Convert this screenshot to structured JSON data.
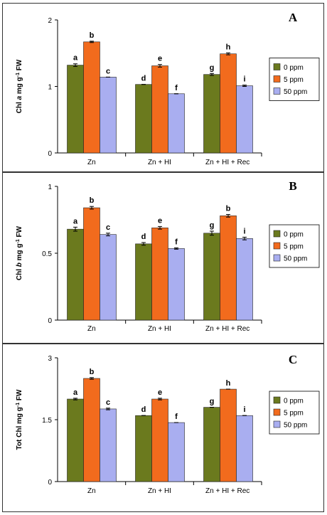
{
  "legend": [
    {
      "label": "0 ppm",
      "color": "#6b7a1e"
    },
    {
      "label": "5 ppm",
      "color": "#f26b1d"
    },
    {
      "label": "50 ppm",
      "color": "#a9aef0"
    }
  ],
  "chart_data": [
    {
      "type": "bar",
      "panel_letter": "A",
      "ylabel_parts": [
        "Chl ",
        "a",
        " mg g",
        "-1",
        " FW"
      ],
      "categories": [
        "Zn",
        "Zn + HI",
        "Zn + HI + Rec"
      ],
      "ylim": [
        0,
        2
      ],
      "ticks": [
        0,
        1,
        2
      ],
      "tick_labels": [
        "0",
        "1",
        "2"
      ],
      "grid": false,
      "legend_position": "right",
      "series": [
        {
          "name": "0 ppm",
          "values": [
            1.32,
            1.03,
            1.18
          ],
          "errors": [
            0.02,
            0.0,
            0.015
          ],
          "letters": [
            "a",
            "d",
            "g"
          ]
        },
        {
          "name": "5 ppm",
          "values": [
            1.67,
            1.31,
            1.49
          ],
          "errors": [
            0.01,
            0.02,
            0.015
          ],
          "letters": [
            "b",
            "e",
            "h"
          ]
        },
        {
          "name": "50 ppm",
          "values": [
            1.14,
            0.89,
            1.01
          ],
          "errors": [
            0.0,
            0.0,
            0.01
          ],
          "letters": [
            "c",
            "f",
            "i"
          ]
        }
      ]
    },
    {
      "type": "bar",
      "panel_letter": "B",
      "ylabel_parts": [
        "Chl ",
        "b",
        " mg g",
        "-1",
        " FW"
      ],
      "categories": [
        "Zn",
        "Zn + HI",
        "Zn + HI + Rec"
      ],
      "ylim": [
        0,
        1
      ],
      "ticks": [
        0,
        0.5,
        1
      ],
      "tick_labels": [
        "0",
        "0.5",
        "1"
      ],
      "grid": false,
      "legend_position": "right",
      "series": [
        {
          "name": "0 ppm",
          "values": [
            0.68,
            0.57,
            0.65
          ],
          "errors": [
            0.015,
            0.01,
            0.015
          ],
          "letters": [
            "a",
            "d",
            "g"
          ]
        },
        {
          "name": "5 ppm",
          "values": [
            0.84,
            0.69,
            0.78
          ],
          "errors": [
            0.01,
            0.01,
            0.01
          ],
          "letters": [
            "b",
            "e",
            "b"
          ]
        },
        {
          "name": "50 ppm",
          "values": [
            0.64,
            0.535,
            0.61
          ],
          "errors": [
            0.01,
            0.005,
            0.01
          ],
          "letters": [
            "c",
            "f",
            "i"
          ]
        }
      ]
    },
    {
      "type": "bar",
      "panel_letter": "C",
      "ylabel_parts": [
        "Tot Chl mg g",
        "-1",
        " FW"
      ],
      "categories": [
        "Zn",
        "Zn + HI",
        "Zn + HI + Rec"
      ],
      "ylim": [
        0,
        3
      ],
      "ticks": [
        0,
        1.5,
        3
      ],
      "tick_labels": [
        "0",
        "1.5",
        "3"
      ],
      "grid": false,
      "legend_position": "right",
      "series": [
        {
          "name": "0 ppm",
          "values": [
            2.0,
            1.6,
            1.8
          ],
          "errors": [
            0.02,
            0.0,
            0.0
          ],
          "letters": [
            "a",
            "d",
            "g"
          ]
        },
        {
          "name": "5 ppm",
          "values": [
            2.5,
            2.0,
            2.24
          ],
          "errors": [
            0.02,
            0.02,
            0.0
          ],
          "letters": [
            "b",
            "e",
            "h"
          ]
        },
        {
          "name": "50 ppm",
          "values": [
            1.76,
            1.43,
            1.6
          ],
          "errors": [
            0.02,
            0.0,
            0.0
          ],
          "letters": [
            "c",
            "f",
            "i"
          ]
        }
      ]
    }
  ]
}
